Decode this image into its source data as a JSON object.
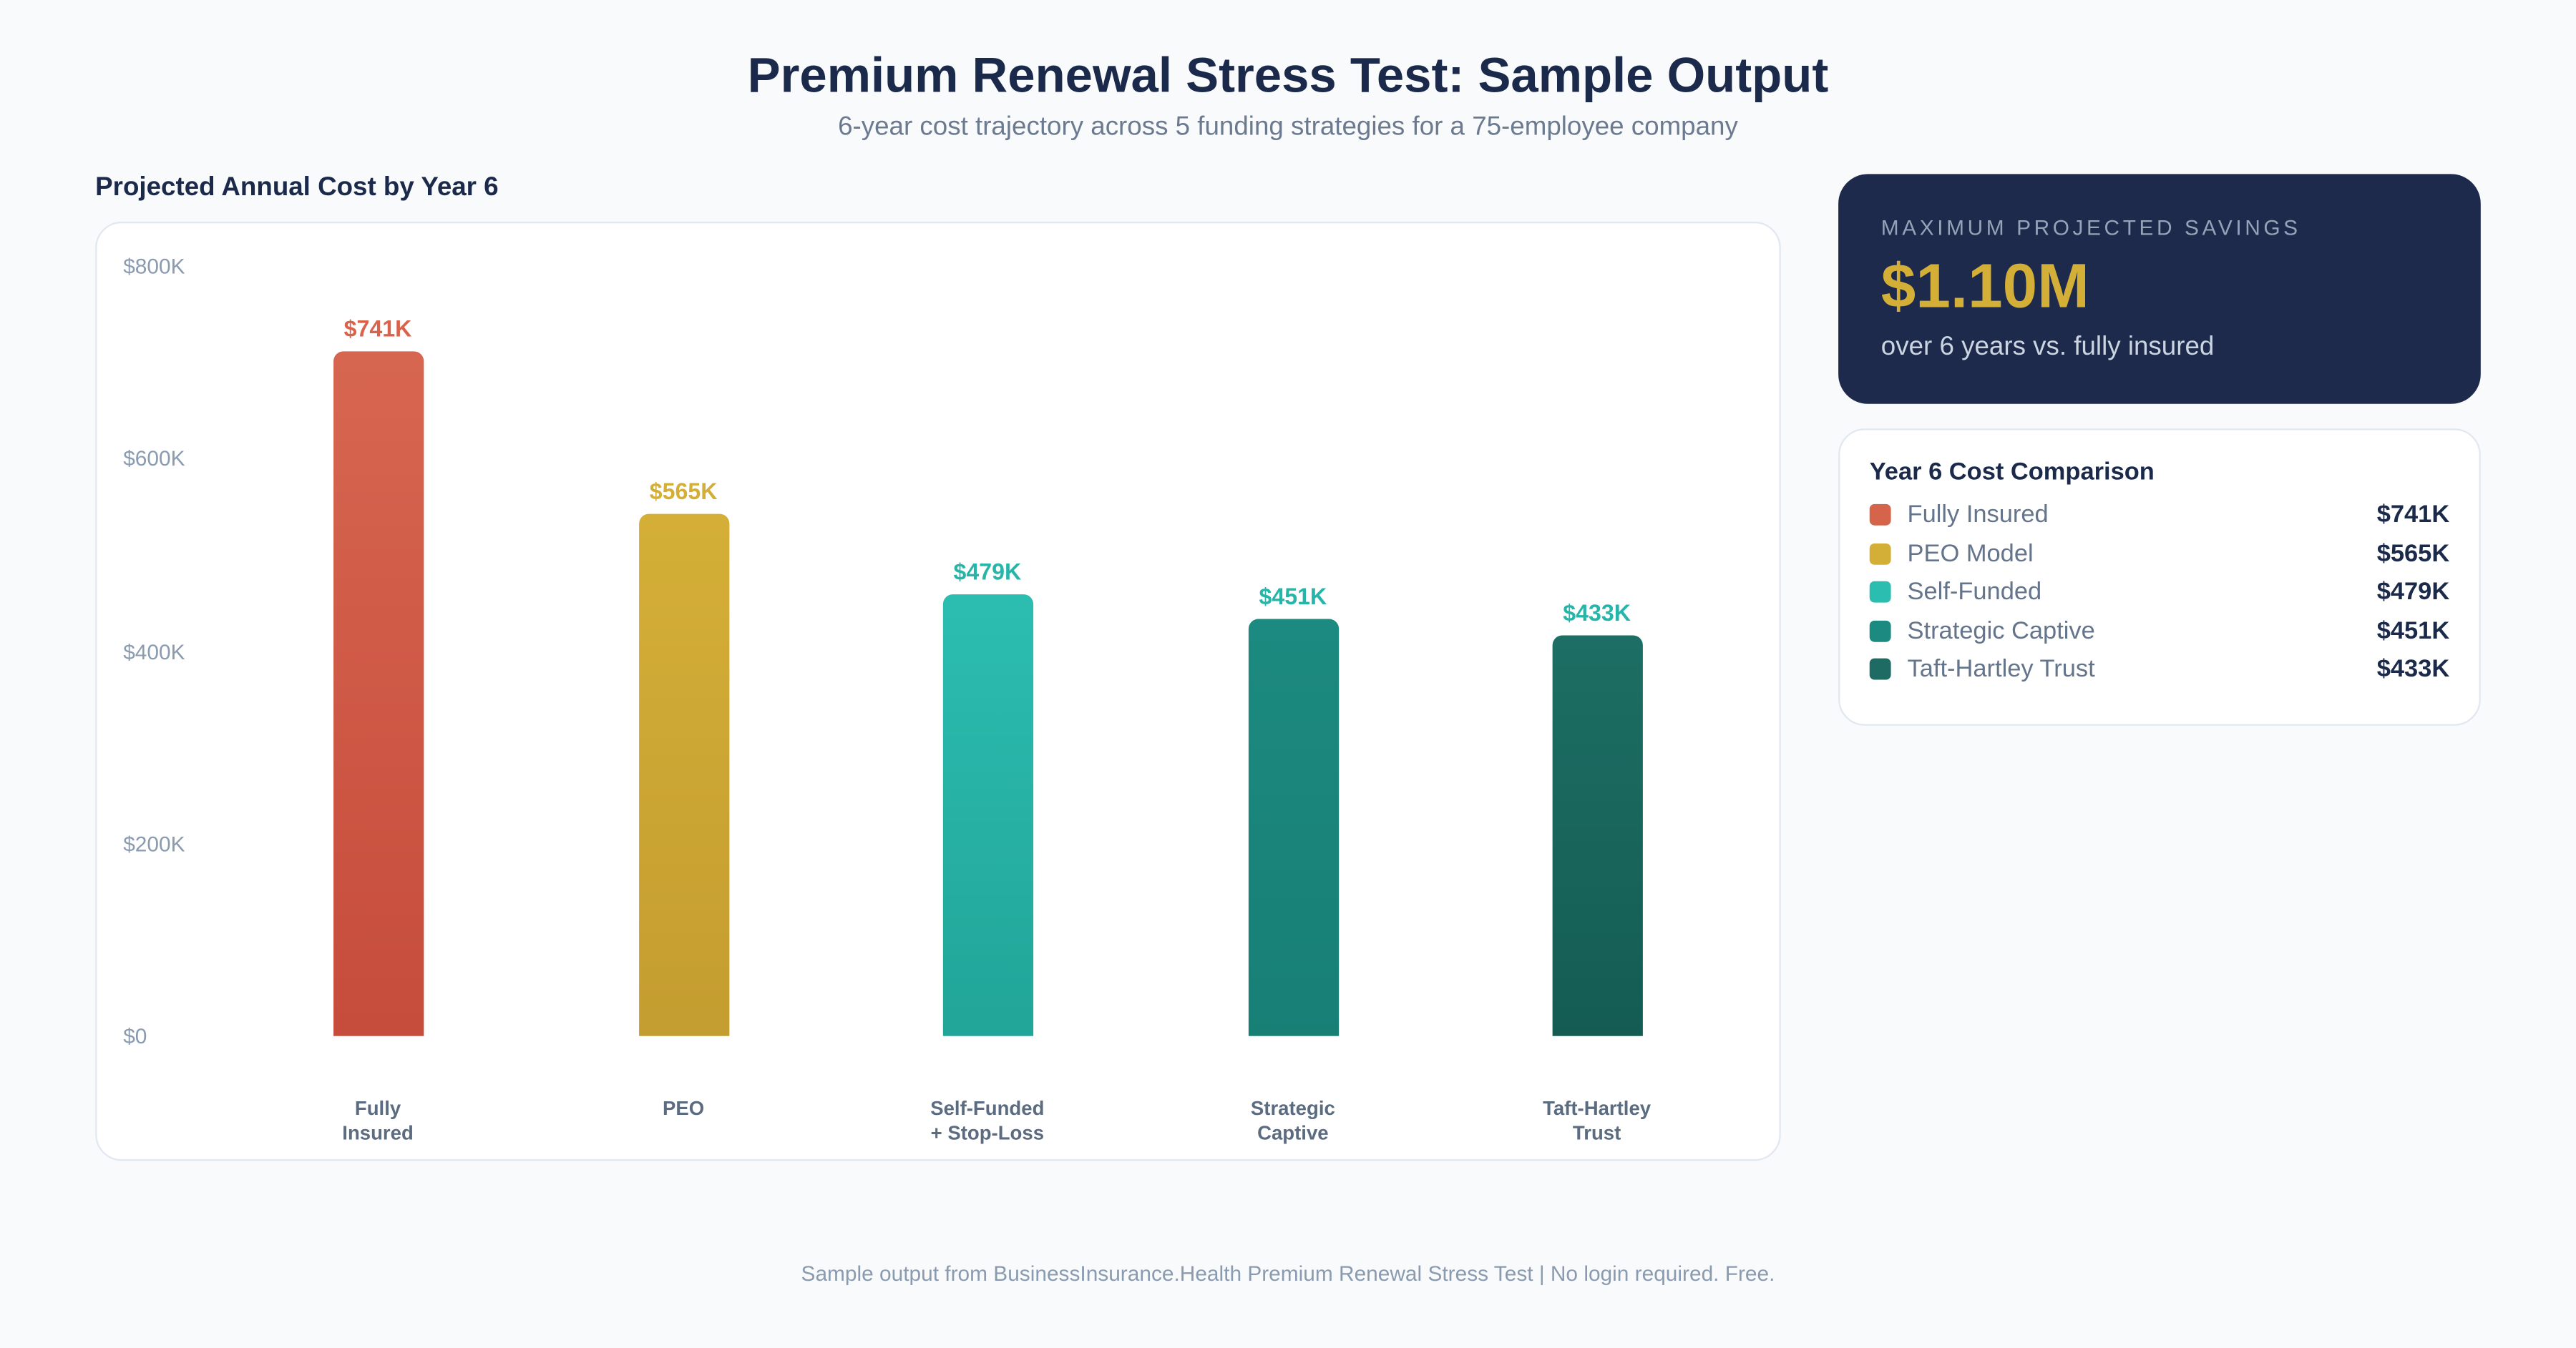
{
  "header": {
    "title": "Premium Renewal Stress Test: Sample Output",
    "subtitle": "6-year cost trajectory across 5 funding strategies for a 75-employee company"
  },
  "chart_data": {
    "type": "bar",
    "title": "Projected Annual Cost by Year 6",
    "xlabel": "",
    "ylabel": "",
    "ylim": [
      0,
      800
    ],
    "unit": "thousand USD",
    "grid": false,
    "yticks": [
      {
        "value": 800,
        "label": "$800K"
      },
      {
        "value": 600,
        "label": "$600K"
      },
      {
        "value": 400,
        "label": "$400K"
      },
      {
        "value": 200,
        "label": "$200K"
      },
      {
        "value": 0,
        "label": "$0"
      }
    ],
    "categories": [
      "Fully\nInsured",
      "PEO",
      "Self-Funded\n+ Stop-Loss",
      "Strategic\nCaptive",
      "Taft-Hartley\nTrust"
    ],
    "values": [
      741,
      565,
      479,
      451,
      433
    ],
    "data_labels": [
      "$741K",
      "$565K",
      "$479K",
      "$451K",
      "$433K"
    ],
    "colors": [
      [
        "#d76650",
        "#c64c3b"
      ],
      [
        "#d4af37",
        "#c49d30"
      ],
      [
        "#2cbdb1",
        "#21a598"
      ],
      [
        "#1c8a80",
        "#187f75"
      ],
      [
        "#1d6e64",
        "#145c53"
      ]
    ],
    "label_colors": [
      "#d9634a",
      "#d4af37",
      "#26b5a8",
      "#26b5a8",
      "#26b5a8"
    ]
  },
  "savings": {
    "label": "MAXIMUM PROJECTED SAVINGS",
    "value": "$1.10M",
    "sub": "over 6 years vs. fully insured"
  },
  "legend": {
    "title": "Year 6 Cost Comparison",
    "items": [
      {
        "name": "Fully Insured",
        "value": "$741K",
        "color": "#d6644b"
      },
      {
        "name": "PEO Model",
        "value": "$565K",
        "color": "#d4af37"
      },
      {
        "name": "Self-Funded",
        "value": "$479K",
        "color": "#2cbdb1"
      },
      {
        "name": "Strategic Captive",
        "value": "$451K",
        "color": "#1c8a80"
      },
      {
        "name": "Taft-Hartley Trust",
        "value": "$433K",
        "color": "#1d6b62"
      }
    ]
  },
  "footer": "Sample output from BusinessInsurance.Health Premium Renewal Stress Test | No login required. Free."
}
